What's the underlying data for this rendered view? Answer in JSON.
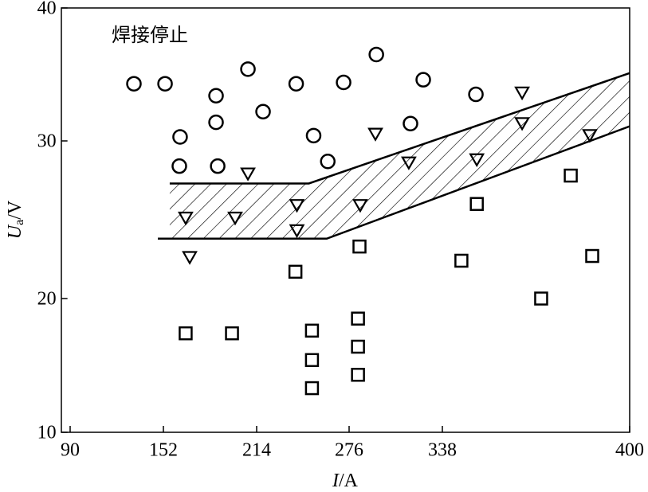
{
  "chart_data": {
    "type": "scatter",
    "annotation": "焊接停止",
    "xlabel": {
      "symbol": "I",
      "unit": "/A"
    },
    "ylabel": {
      "symbol": "U",
      "subscript": "a",
      "unit": "/V"
    },
    "xlim": [
      84,
      400
    ],
    "xticks": [
      90,
      152,
      214,
      276,
      338,
      400
    ],
    "ylim": [
      10,
      40
    ],
    "yticks": [
      10,
      20,
      30,
      40
    ],
    "series": [
      {
        "marker": "circle",
        "color": "#000000",
        "x": [
          132.4,
          153.1,
          163.1,
          162.6,
          187.0,
          187.0,
          188.1,
          208.2,
          218.3,
          240.5,
          252.2,
          261.7,
          272.3,
          294.1,
          316.8,
          325.3,
          349.1
        ],
        "values": [
          34.3,
          34.3,
          30.3,
          28.4,
          33.4,
          31.4,
          28.4,
          35.4,
          32.2,
          34.3,
          30.4,
          28.7,
          34.4,
          36.5,
          31.3,
          34.6,
          33.5
        ]
      },
      {
        "marker": "triangle-down",
        "color": "#000000",
        "x": [
          166.8,
          169.5,
          199.7,
          208.2,
          241.0,
          241.0,
          283.4,
          293.5,
          315.7,
          349.4,
          364.4,
          364.4,
          386.8
        ],
        "values": [
          25.1,
          22.6,
          25.1,
          27.9,
          25.9,
          24.3,
          25.9,
          30.5,
          28.6,
          28.8,
          33.6,
          31.3,
          30.4
        ]
      },
      {
        "marker": "square",
        "color": "#000000",
        "x": [
          166.8,
          197.6,
          240.0,
          251.1,
          251.1,
          251.1,
          281.9,
          281.9,
          281.9,
          282.9,
          344.3,
          349.4,
          370.7,
          380.5,
          387.6
        ],
        "values": [
          17.4,
          17.4,
          21.7,
          17.6,
          15.4,
          13.3,
          18.5,
          16.4,
          14.3,
          23.3,
          22.4,
          26.0,
          20.0,
          27.8,
          22.7
        ]
      }
    ],
    "band": {
      "upper": {
        "x": [
          156.2,
          249.0,
          400
        ],
        "values": [
          27.3,
          27.3,
          35.1
        ]
      },
      "lower": {
        "x": [
          148.3,
          261.0,
          400
        ],
        "values": [
          23.8,
          23.8,
          31.1
        ]
      }
    }
  }
}
